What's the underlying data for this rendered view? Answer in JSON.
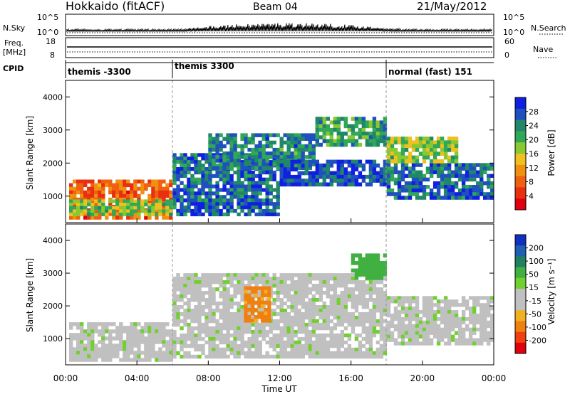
{
  "header": {
    "station": "Hokkaido (fitACF)",
    "beam": "Beam 04",
    "date": "21/May/2012"
  },
  "nsky_panel": {
    "left_label": "N.Sky",
    "right_label": "N.Search",
    "left_ticks": [
      "10^5",
      "10^0"
    ],
    "right_ticks": [
      "10^5",
      "10^0"
    ]
  },
  "freq_panel": {
    "left_label_1": "Freq.",
    "left_label_2": "[MHz]",
    "right_label": "Nave",
    "left_ticks": [
      "18",
      "8"
    ],
    "right_ticks": [
      "60",
      "0"
    ]
  },
  "cpid_panel": {
    "label": "CPID",
    "segments": [
      {
        "start_hour": 0,
        "end_hour": 6,
        "text": "themis -3300"
      },
      {
        "start_hour": 6,
        "end_hour": 18,
        "text": "themis 3300"
      },
      {
        "start_hour": 18,
        "end_hour": 24,
        "text": "normal (fast) 151"
      }
    ]
  },
  "power_panel": {
    "ylabel": "Slant Range [km]",
    "yticks": [
      "1000",
      "2000",
      "3000",
      "4000"
    ],
    "colorbar_label": "Power [dB]",
    "colorbar_ticks": [
      "4",
      "8",
      "12",
      "16",
      "20",
      "24",
      "28"
    ],
    "colorbar_colors": [
      "#1020e0",
      "#2050c0",
      "#208868",
      "#30a858",
      "#88c830",
      "#f0c020",
      "#f09010",
      "#f06010",
      "#e83010",
      "#e00010"
    ]
  },
  "velocity_panel": {
    "ylabel": "Slant Range [km]",
    "yticks": [
      "1000",
      "2000",
      "3000",
      "4000"
    ],
    "colorbar_label": "Velocity [m s⁻¹]",
    "colorbar_ticks": [
      "200",
      "100",
      "50",
      "15",
      "-15",
      "-50",
      "-100",
      "-200"
    ],
    "colorbar_colors": [
      "#1030c0",
      "#2060b0",
      "#208060",
      "#40b040",
      "#70d030",
      "#c0c0c0",
      "#c0c0c0",
      "#f0b020",
      "#f08010",
      "#f04010",
      "#e00010"
    ]
  },
  "x_axis": {
    "ticks": [
      "00:00",
      "04:00",
      "08:00",
      "12:00",
      "16:00",
      "20:00",
      "00:00"
    ],
    "label": "Time UT"
  },
  "chart_data": [
    {
      "type": "heatmap",
      "name": "power",
      "x_range_hours": [
        0,
        24
      ],
      "y_range_km": [
        200,
        4500
      ],
      "z_range_db": [
        0,
        32
      ],
      "regions": [
        {
          "t0": 0.2,
          "t1": 6,
          "r0": 300,
          "r1": 1500,
          "z": 8
        },
        {
          "t0": 0.2,
          "t1": 6,
          "r0": 400,
          "r1": 900,
          "z": 18
        },
        {
          "t0": 6,
          "t1": 12,
          "r0": 400,
          "r1": 2300,
          "z": 26
        },
        {
          "t0": 8,
          "t1": 14,
          "r0": 1800,
          "r1": 2900,
          "z": 24
        },
        {
          "t0": 12,
          "t1": 18,
          "r0": 1300,
          "r1": 2100,
          "z": 28
        },
        {
          "t0": 14,
          "t1": 18,
          "r0": 2500,
          "r1": 3400,
          "z": 22
        },
        {
          "t0": 18,
          "t1": 24,
          "r0": 900,
          "r1": 2000,
          "z": 26
        },
        {
          "t0": 18,
          "t1": 22,
          "r0": 2000,
          "r1": 2800,
          "z": 18
        }
      ]
    },
    {
      "type": "heatmap",
      "name": "velocity",
      "x_range_hours": [
        0,
        24
      ],
      "y_range_km": [
        200,
        4500
      ],
      "z_range_ms": [
        -250,
        250
      ],
      "regions": [
        {
          "t0": 0.2,
          "t1": 6,
          "r0": 300,
          "r1": 1500,
          "z": 0
        },
        {
          "t0": 6,
          "t1": 18,
          "r0": 400,
          "r1": 3000,
          "z": 0
        },
        {
          "t0": 10,
          "t1": 11.5,
          "r0": 1500,
          "r1": 2600,
          "z": -60
        },
        {
          "t0": 16,
          "t1": 18,
          "r0": 2800,
          "r1": 3600,
          "z": 50
        },
        {
          "t0": 18,
          "t1": 24,
          "r0": 800,
          "r1": 2300,
          "z": 0
        }
      ]
    }
  ]
}
